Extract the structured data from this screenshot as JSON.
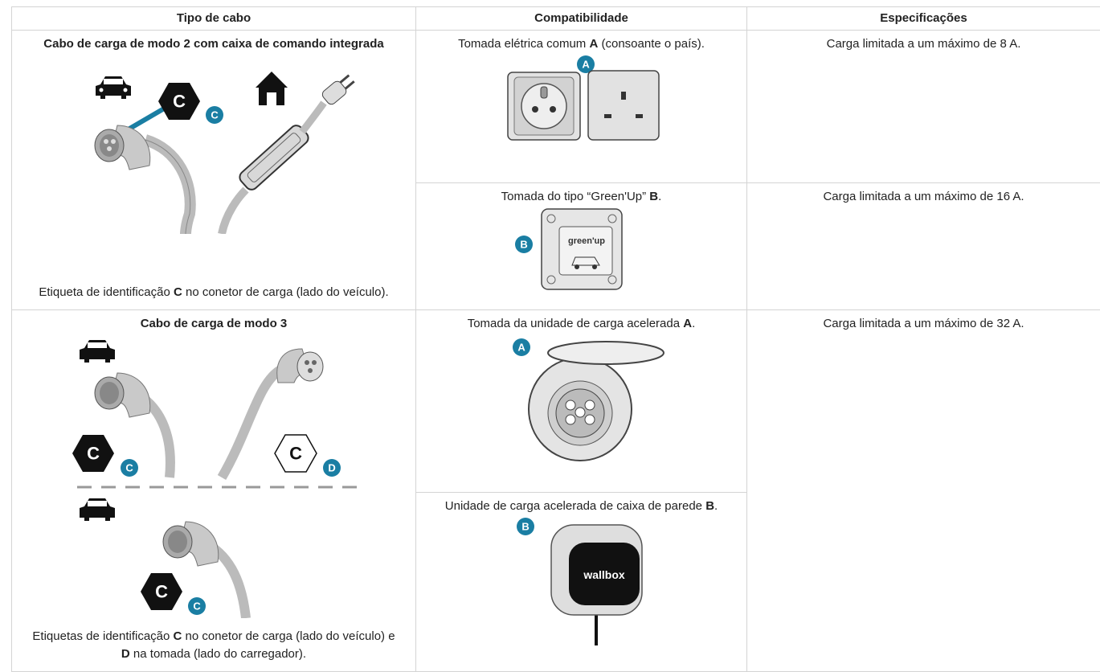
{
  "table": {
    "headers": [
      "Tipo de cabo",
      "Compatibilidade",
      "Especificações"
    ],
    "rows": [
      {
        "cable": {
          "title": "Cabo de carga de modo 2 com caixa de comando integrada",
          "figure": {
            "labels": [
              "C",
              "C"
            ]
          },
          "caption": [
            "Etiqueta de identificação ",
            "C",
            " no conetor de carga (lado do veículo)."
          ]
        },
        "options": [
          {
            "text": [
              "Tomada elétrica comum ",
              "A",
              " (consoante o país)."
            ],
            "figure": {
              "labels": [
                "A"
              ]
            },
            "spec": "Carga limitada a um máximo de 8 A."
          },
          {
            "text": [
              "Tomada do tipo “Green'Up” ",
              "B",
              "."
            ],
            "figure": {
              "labels": [
                "B",
                "green'up"
              ]
            },
            "spec": "Carga limitada a um máximo de 16 A."
          }
        ]
      },
      {
        "cable": {
          "title": "Cabo de carga de modo 3",
          "figure": {
            "labels": [
              "C",
              "C",
              "C",
              "D",
              "C",
              "C"
            ]
          },
          "caption": [
            "Etiquetas de identificação ",
            "C",
            " no conetor de carga (lado do veículo) e ",
            "D",
            " na tomada (lado do carregador)."
          ]
        },
        "options": [
          {
            "text": [
              "Tomada da unidade de carga acelerada ",
              "A",
              "."
            ],
            "figure": {
              "labels": [
                "A"
              ]
            },
            "spec": "Carga limitada a um máximo de 32 A."
          },
          {
            "text": [
              "Unidade de carga acelerada de caixa de parede ",
              "B",
              "."
            ],
            "figure": {
              "labels": [
                "B",
                "wallbox"
              ]
            }
          }
        ]
      }
    ]
  }
}
